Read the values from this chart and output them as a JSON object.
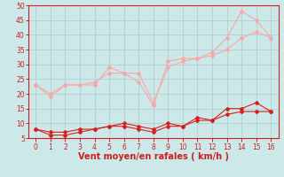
{
  "x": [
    0,
    1,
    2,
    3,
    4,
    5,
    6,
    7,
    8,
    9,
    10,
    11,
    12,
    13,
    14,
    15,
    16
  ],
  "line1": [
    23,
    19,
    23,
    23,
    23,
    29,
    27,
    24,
    16,
    31,
    32,
    32,
    34,
    39,
    48,
    45,
    39
  ],
  "line2": [
    23,
    20,
    23,
    23,
    24,
    27,
    27,
    27,
    17,
    29,
    31,
    32,
    33,
    35,
    39,
    41,
    39
  ],
  "line3": [
    8,
    7,
    7,
    8,
    8,
    9,
    10,
    9,
    8,
    10,
    9,
    12,
    11,
    15,
    15,
    17,
    14
  ],
  "line4": [
    8,
    6,
    6,
    7,
    8,
    9,
    9,
    8,
    7,
    9,
    9,
    11,
    11,
    13,
    14,
    14,
    14
  ],
  "color_light": "#f8a8a8",
  "color_dark": "#d82020",
  "bg_color": "#cce8e8",
  "grid_color": "#aacccc",
  "axis_color": "#cc2020",
  "xlabel": "Vent moyen/en rafales ( km/h )",
  "ylim": [
    5,
    50
  ],
  "xlim": [
    -0.5,
    16.5
  ],
  "yticks": [
    5,
    10,
    15,
    20,
    25,
    30,
    35,
    40,
    45,
    50
  ],
  "label_fontsize": 5.5,
  "xlabel_fontsize": 7.0
}
